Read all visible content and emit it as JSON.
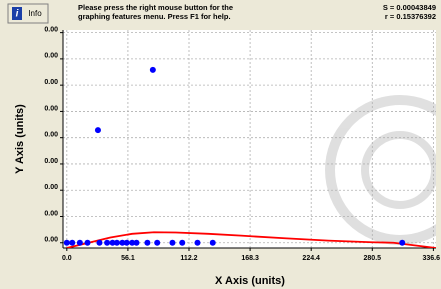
{
  "info_button": "Info",
  "message": [
    "Please press the right mouse button for the",
    "graphing features menu.  Press F1 for help."
  ],
  "stats": [
    "S = 0.00043849",
    "r = 0.15376392"
  ],
  "chart_data": {
    "type": "scatter",
    "xlabel": "X Axis (units)",
    "ylabel": "Y Axis (units)",
    "xlim": [
      -3.5,
      339
    ],
    "ylim": [
      -2e-05,
      0.00081
    ],
    "xticks": [
      {
        "value": 0,
        "label": "0.0"
      },
      56.1,
      112.2,
      168.3,
      224.4,
      280.5,
      336.6
    ],
    "yticks": [
      {
        "value": 0,
        "label": "0.00"
      },
      {
        "value": 0.0001,
        "label": "0.00"
      },
      {
        "value": 0.0002,
        "label": "0.00"
      },
      {
        "value": 0.0003,
        "label": "0.00"
      },
      {
        "value": 0.0004,
        "label": "0.00"
      },
      {
        "value": 0.0005,
        "label": "0.00"
      },
      {
        "value": 0.0006,
        "label": "0.00"
      },
      {
        "value": 0.0007,
        "label": "0.00"
      },
      {
        "value": 0.0008,
        "label": "0.00"
      }
    ],
    "grid": true,
    "series": [
      {
        "type": "scatter",
        "color": "#0000ff",
        "x": [
          0,
          5,
          12,
          19,
          28.6,
          30,
          37,
          42,
          46,
          51,
          55,
          60,
          64,
          74,
          79,
          83,
          97,
          106,
          120,
          134,
          308
        ],
        "values": [
          0,
          0,
          0,
          0,
          0.000429,
          0,
          0,
          0,
          0,
          0,
          0,
          0,
          0,
          0,
          0.000658,
          0,
          0,
          0,
          0,
          0,
          0
        ]
      },
      {
        "type": "line",
        "color": "#ff0000",
        "x": [
          0,
          20,
          40,
          60,
          80,
          100,
          130,
          160,
          200,
          240,
          280,
          300,
          339
        ],
        "values": [
          -2e-05,
          0,
          2e-05,
          3.4e-05,
          4e-05,
          3.9e-05,
          3.4e-05,
          2.7e-05,
          1.7e-05,
          8e-06,
          2e-06,
          0,
          -2e-05
        ]
      }
    ]
  }
}
